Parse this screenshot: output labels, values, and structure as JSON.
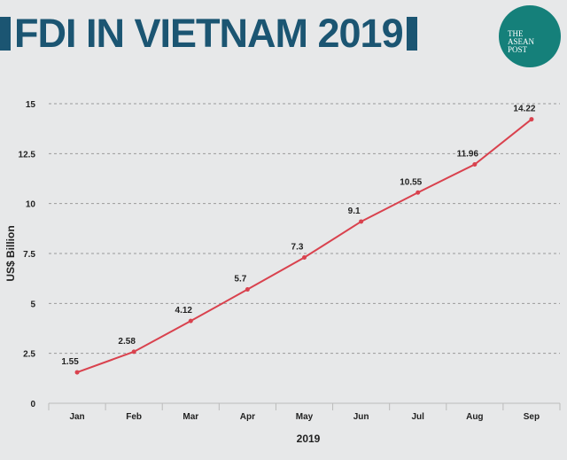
{
  "chart_data": {
    "type": "line",
    "title": "FDI IN VIETNAM 2019",
    "xlabel": "2019",
    "ylabel": "US$ Billion",
    "categories": [
      "Jan",
      "Feb",
      "Mar",
      "Apr",
      "May",
      "Jun",
      "Jul",
      "Aug",
      "Sep"
    ],
    "values": [
      1.55,
      2.58,
      4.12,
      5.7,
      7.3,
      9.1,
      10.55,
      11.96,
      14.22
    ],
    "data_labels": [
      "1.55",
      "2.58",
      "4.12",
      "5.7",
      "7.3",
      "9.1",
      "10.55",
      "11.96",
      "14.22"
    ],
    "ylim": [
      0,
      15
    ],
    "yticks": [
      "0",
      "2.5",
      "5",
      "7.5",
      "10",
      "12.5",
      "15"
    ],
    "grid": "horizontal dashed",
    "line_color": "#d9424e"
  },
  "logo": {
    "text": "THE ASEAN POST",
    "color": "#15807a"
  },
  "title_color": "#1b5572"
}
